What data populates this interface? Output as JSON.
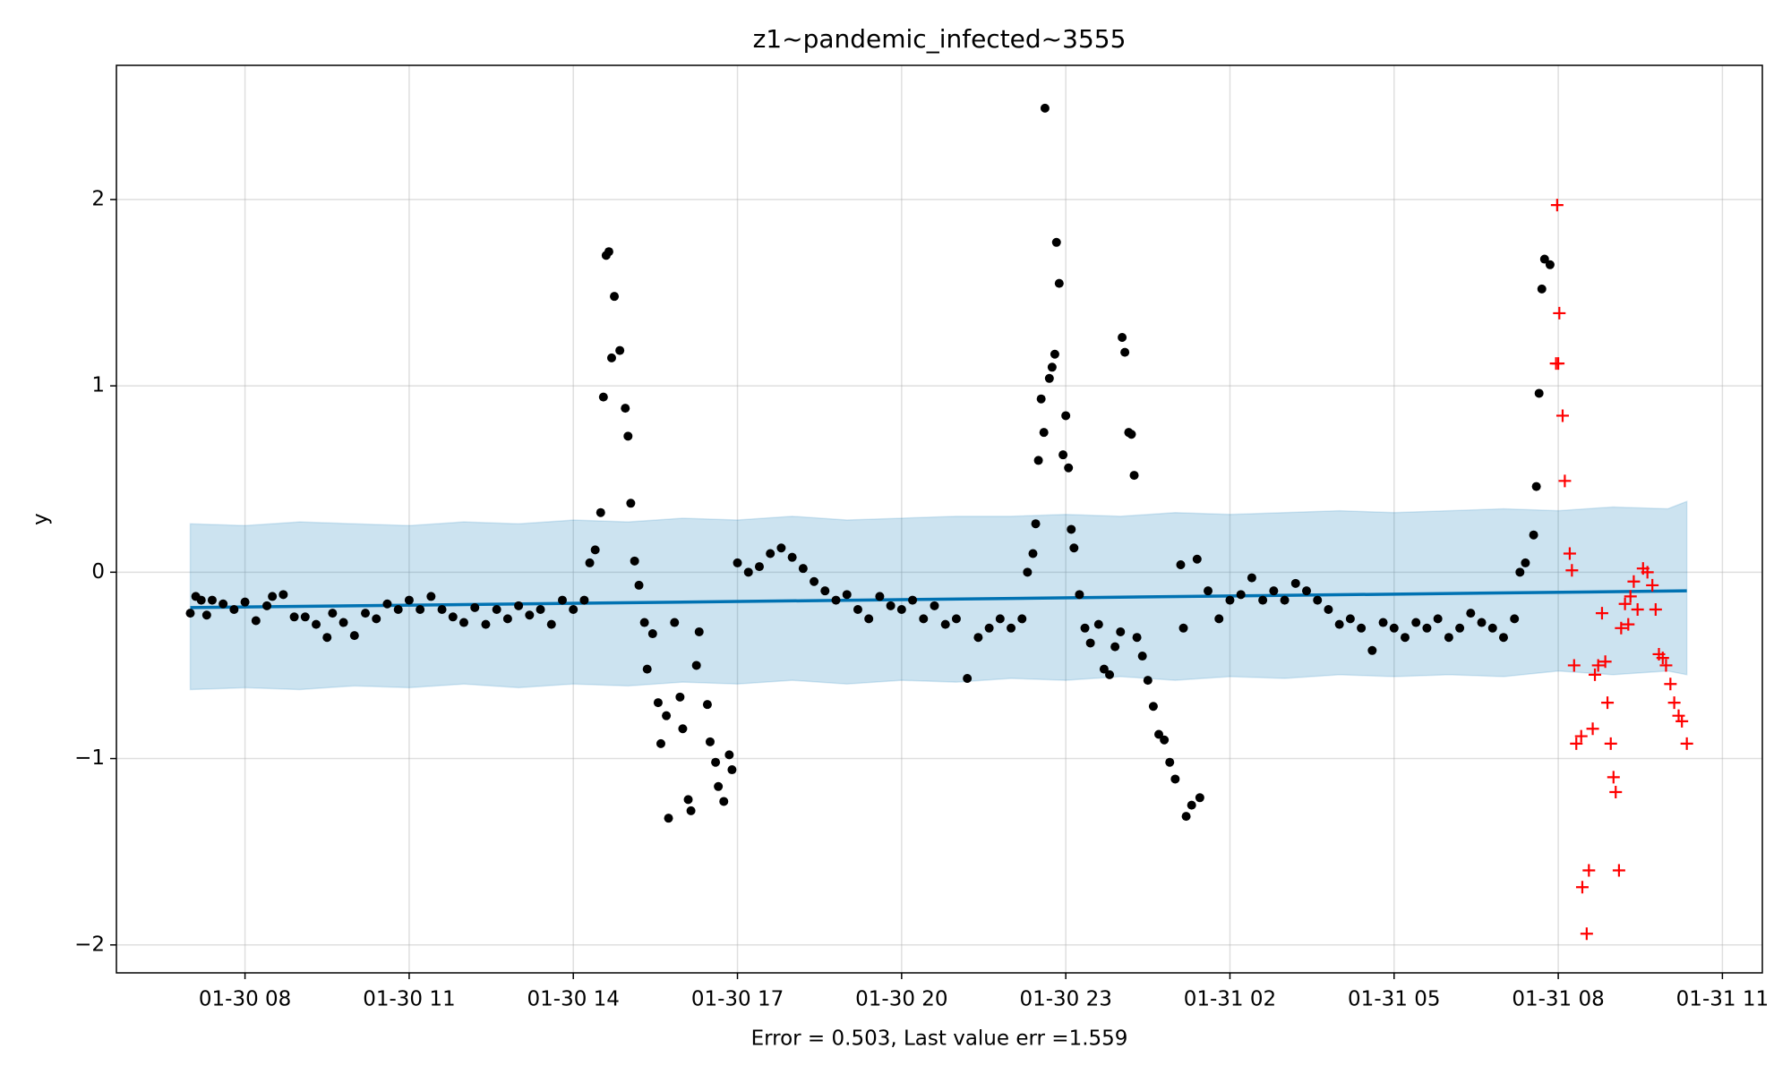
{
  "chart_data": {
    "type": "scatter",
    "title": "z1~pandemic_infected~3555",
    "xlabel": "Error = 0.503, Last value err =1.559",
    "ylabel": "y",
    "xlim": [
      5.65,
      35.73
    ],
    "ylim": [
      -2.15,
      2.72
    ],
    "grid": true,
    "xticks": [
      {
        "value": 8,
        "label": "01-30 08"
      },
      {
        "value": 11,
        "label": "01-30 11"
      },
      {
        "value": 14,
        "label": "01-30 14"
      },
      {
        "value": 17,
        "label": "01-30 17"
      },
      {
        "value": 20,
        "label": "01-30 20"
      },
      {
        "value": 23,
        "label": "01-30 23"
      },
      {
        "value": 26,
        "label": "01-31 02"
      },
      {
        "value": 29,
        "label": "01-31 05"
      },
      {
        "value": 32,
        "label": "01-31 08"
      },
      {
        "value": 35,
        "label": "01-31 11"
      }
    ],
    "yticks": [
      {
        "value": -2,
        "label": "−2"
      },
      {
        "value": -1,
        "label": "−1"
      },
      0,
      1,
      2
    ],
    "series": [
      {
        "type": "band",
        "color": "#0072B2",
        "x": [
          7,
          8,
          9,
          10,
          11,
          12,
          13,
          14,
          15,
          16,
          17,
          18,
          19,
          20,
          21,
          22,
          23,
          24,
          25,
          26,
          27,
          28,
          29,
          30,
          31,
          32,
          33,
          34,
          34.35
        ],
        "upper": [
          0.26,
          0.25,
          0.27,
          0.26,
          0.25,
          0.27,
          0.26,
          0.28,
          0.27,
          0.29,
          0.28,
          0.3,
          0.28,
          0.29,
          0.3,
          0.3,
          0.31,
          0.3,
          0.32,
          0.31,
          0.32,
          0.33,
          0.32,
          0.33,
          0.34,
          0.33,
          0.35,
          0.34,
          0.38
        ],
        "lower": [
          -0.63,
          -0.62,
          -0.63,
          -0.61,
          -0.62,
          -0.6,
          -0.62,
          -0.6,
          -0.61,
          -0.59,
          -0.6,
          -0.58,
          -0.6,
          -0.58,
          -0.59,
          -0.57,
          -0.58,
          -0.56,
          -0.58,
          -0.56,
          -0.57,
          -0.55,
          -0.56,
          -0.55,
          -0.56,
          -0.53,
          -0.55,
          -0.53,
          -0.55
        ]
      },
      {
        "type": "line",
        "color": "#0072B2",
        "x": [
          7,
          34.35
        ],
        "values": [
          -0.19,
          -0.1
        ]
      },
      {
        "type": "scatter",
        "marker": "dot",
        "color": "#000000",
        "x": [
          7.0,
          7.1,
          7.2,
          7.3,
          7.4,
          7.6,
          7.8,
          8.0,
          8.2,
          8.4,
          8.5,
          8.7,
          8.9,
          9.1,
          9.3,
          9.5,
          9.6,
          9.8,
          10.0,
          10.2,
          10.4,
          10.6,
          10.8,
          11.0,
          11.2,
          11.4,
          11.6,
          11.8,
          12.0,
          12.2,
          12.4,
          12.6,
          12.8,
          13.0,
          13.2,
          13.4,
          13.6,
          13.8,
          14.0,
          14.2,
          14.3,
          14.4,
          14.5,
          14.55,
          14.6,
          14.65,
          14.7,
          14.75,
          14.85,
          14.95,
          15.0,
          15.05,
          15.12,
          15.2,
          15.3,
          15.35,
          15.45,
          15.55,
          15.6,
          15.7,
          15.74,
          15.85,
          15.95,
          16.0,
          16.1,
          16.15,
          16.25,
          16.3,
          16.45,
          16.5,
          16.6,
          16.65,
          16.75,
          16.85,
          16.9,
          17.0,
          17.2,
          17.4,
          17.6,
          17.8,
          18.0,
          18.2,
          18.4,
          18.6,
          18.8,
          19.0,
          19.2,
          19.4,
          19.6,
          19.8,
          20.0,
          20.2,
          20.4,
          20.6,
          20.8,
          21.0,
          21.2,
          21.4,
          21.6,
          21.8,
          22.0,
          22.2,
          22.3,
          22.4,
          22.45,
          22.5,
          22.55,
          22.6,
          22.62,
          22.7,
          22.75,
          22.8,
          22.83,
          22.88,
          22.95,
          23.0,
          23.05,
          23.1,
          23.15,
          23.25,
          23.35,
          23.45,
          23.6,
          23.7,
          23.8,
          23.9,
          24.0,
          24.03,
          24.08,
          24.15,
          24.2,
          24.25,
          24.3,
          24.4,
          24.5,
          24.6,
          24.7,
          24.8,
          24.9,
          25.0,
          25.1,
          25.15,
          25.2,
          25.3,
          25.4,
          25.45,
          25.6,
          25.8,
          26.0,
          26.2,
          26.4,
          26.6,
          26.8,
          27.0,
          27.2,
          27.4,
          27.6,
          27.8,
          28.0,
          28.2,
          28.4,
          28.6,
          28.8,
          29.0,
          29.2,
          29.4,
          29.6,
          29.8,
          30.0,
          30.2,
          30.4,
          30.6,
          30.8,
          31.0,
          31.2,
          31.3,
          31.4,
          31.55,
          31.6,
          31.65,
          31.7,
          31.75,
          31.85
        ],
        "values": [
          -0.22,
          -0.13,
          -0.15,
          -0.23,
          -0.15,
          -0.17,
          -0.2,
          -0.16,
          -0.26,
          -0.18,
          -0.13,
          -0.12,
          -0.24,
          -0.24,
          -0.28,
          -0.35,
          -0.22,
          -0.27,
          -0.34,
          -0.22,
          -0.25,
          -0.17,
          -0.2,
          -0.15,
          -0.2,
          -0.13,
          -0.2,
          -0.24,
          -0.27,
          -0.19,
          -0.28,
          -0.2,
          -0.25,
          -0.18,
          -0.23,
          -0.2,
          -0.28,
          -0.15,
          -0.2,
          -0.15,
          0.05,
          0.12,
          0.32,
          0.94,
          1.7,
          1.72,
          1.15,
          1.48,
          1.19,
          0.88,
          0.73,
          0.37,
          0.06,
          -0.07,
          -0.27,
          -0.52,
          -0.33,
          -0.7,
          -0.92,
          -0.77,
          -1.32,
          -0.27,
          -0.67,
          -0.84,
          -1.22,
          -1.28,
          -0.5,
          -0.32,
          -0.71,
          -0.91,
          -1.02,
          -1.15,
          -1.23,
          -0.98,
          -1.06,
          0.05,
          0.0,
          0.03,
          0.1,
          0.13,
          0.08,
          0.02,
          -0.05,
          -0.1,
          -0.15,
          -0.12,
          -0.2,
          -0.25,
          -0.13,
          -0.18,
          -0.2,
          -0.15,
          -0.25,
          -0.18,
          -0.28,
          -0.25,
          -0.57,
          -0.35,
          -0.3,
          -0.25,
          -0.3,
          -0.25,
          0.0,
          0.1,
          0.26,
          0.6,
          0.93,
          0.75,
          2.49,
          1.04,
          1.1,
          1.17,
          1.77,
          1.55,
          0.63,
          0.84,
          0.56,
          0.23,
          0.13,
          -0.12,
          -0.3,
          -0.38,
          -0.28,
          -0.52,
          -0.55,
          -0.4,
          -0.32,
          1.26,
          1.18,
          0.75,
          0.74,
          0.52,
          -0.35,
          -0.45,
          -0.58,
          -0.72,
          -0.87,
          -0.9,
          -1.02,
          -1.11,
          0.04,
          -0.3,
          -1.31,
          -1.25,
          0.07,
          -1.21,
          -0.1,
          -0.25,
          -0.15,
          -0.12,
          -0.03,
          -0.15,
          -0.1,
          -0.15,
          -0.06,
          -0.1,
          -0.15,
          -0.2,
          -0.28,
          -0.25,
          -0.3,
          -0.42,
          -0.27,
          -0.3,
          -0.35,
          -0.27,
          -0.3,
          -0.25,
          -0.35,
          -0.3,
          -0.22,
          -0.27,
          -0.3,
          -0.35,
          -0.25,
          0.0,
          0.05,
          0.2,
          0.46,
          0.96,
          1.52,
          1.68,
          1.65
        ]
      },
      {
        "type": "scatter",
        "marker": "plus",
        "color": "#ff0000",
        "x": [
          31.96,
          31.98,
          32.0,
          32.02,
          32.08,
          32.12,
          32.21,
          32.25,
          32.29,
          32.33,
          32.42,
          32.44,
          32.52,
          32.56,
          32.63,
          32.67,
          32.73,
          32.8,
          32.86,
          32.9,
          32.96,
          33.01,
          33.05,
          33.11,
          33.15,
          33.22,
          33.28,
          33.32,
          33.38,
          33.45,
          33.55,
          33.63,
          33.72,
          33.78,
          33.84,
          33.91,
          33.97,
          34.05,
          34.12,
          34.2,
          34.26,
          34.35
        ],
        "values": [
          1.12,
          1.97,
          1.12,
          1.39,
          0.84,
          0.49,
          0.1,
          0.01,
          -0.5,
          -0.92,
          -0.88,
          -1.69,
          -1.94,
          -1.6,
          -0.84,
          -0.55,
          -0.5,
          -0.22,
          -0.48,
          -0.7,
          -0.92,
          -1.1,
          -1.18,
          -1.6,
          -0.3,
          -0.17,
          -0.28,
          -0.13,
          -0.05,
          -0.2,
          0.02,
          0.0,
          -0.07,
          -0.2,
          -0.44,
          -0.46,
          -0.5,
          -0.6,
          -0.7,
          -0.77,
          -0.8,
          -0.92
        ]
      }
    ]
  }
}
